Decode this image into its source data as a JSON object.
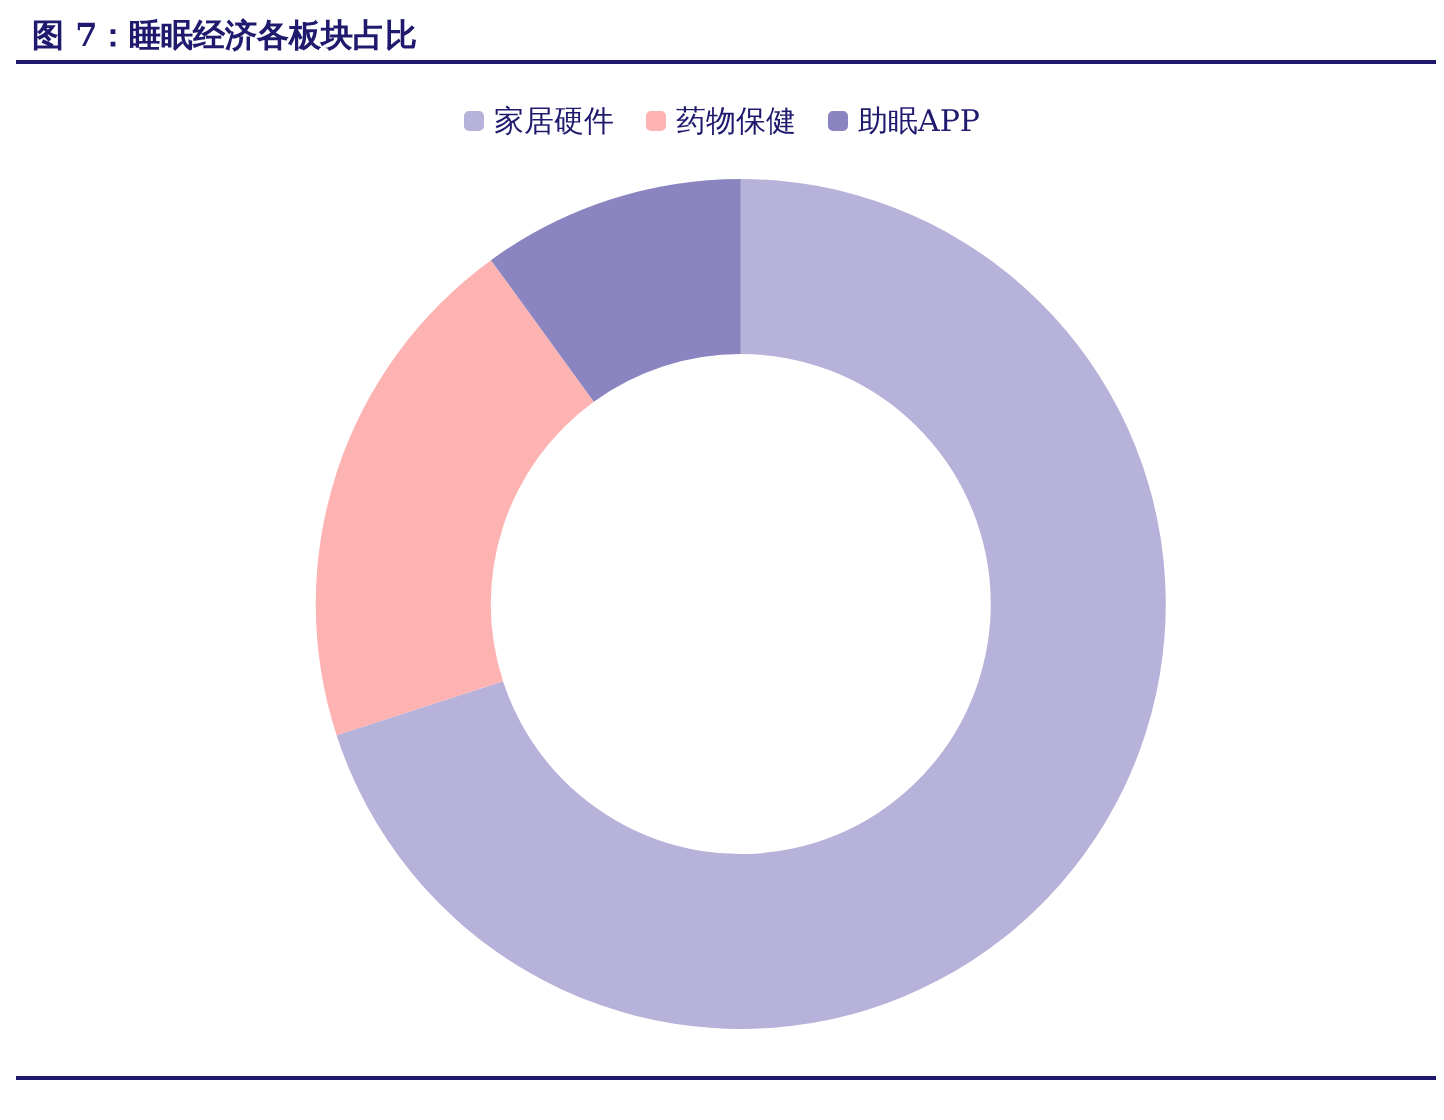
{
  "chart_data": {
    "type": "donut",
    "title": "图 7：睡眠经济各板块占比",
    "categories": [
      "家居硬件",
      "药物保健",
      "助眠APP"
    ],
    "values": [
      70,
      20,
      10
    ],
    "colors": [
      "#b7b2d9",
      "#feb3b3",
      "#8a84c0"
    ],
    "legend": "top"
  }
}
